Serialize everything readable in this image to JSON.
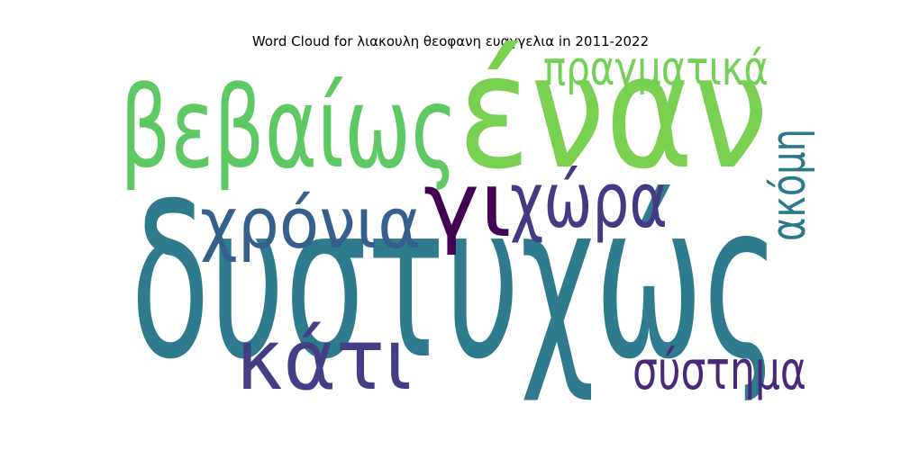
{
  "chart_data": {
    "type": "wordcloud",
    "title": "Word Cloud for λιακουλη θεοφανη ευαγγελια in 2011-2022",
    "words": [
      {
        "text": "δυστυχώς",
        "color": "#2e7b8e"
      },
      {
        "text": "έναν",
        "color": "#7ad151"
      },
      {
        "text": "βεβαίως",
        "color": "#5ec962"
      },
      {
        "text": "πραγματικά",
        "color": "#73d056"
      },
      {
        "text": "χρόνια",
        "color": "#355f8d"
      },
      {
        "text": "γι",
        "color": "#440154"
      },
      {
        "text": "χώρα",
        "color": "#443983"
      },
      {
        "text": "ακόμη",
        "color": "#2a788e"
      },
      {
        "text": "κάτι",
        "color": "#433e85"
      },
      {
        "text": "σύστημα",
        "color": "#482878"
      }
    ]
  }
}
